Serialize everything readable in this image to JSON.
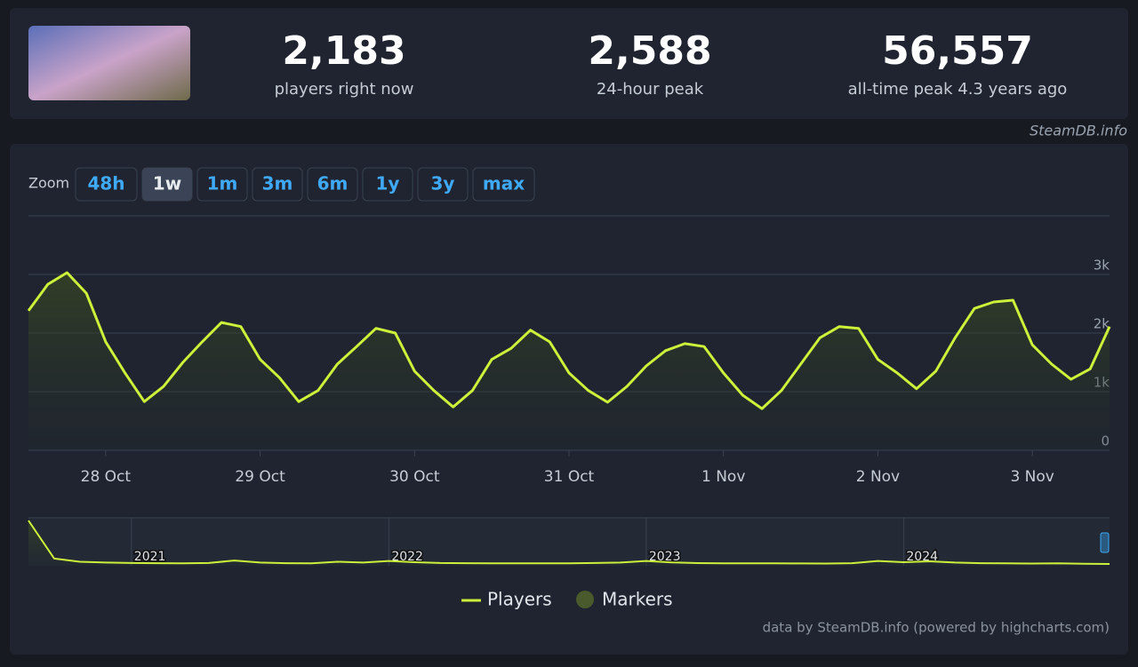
{
  "header": {
    "stats": [
      {
        "value": "2,183",
        "label": "players right now"
      },
      {
        "value": "2,588",
        "label": "24-hour peak"
      },
      {
        "value": "56,557",
        "label": "all-time peak 4.3 years ago"
      }
    ],
    "brand": "SteamDB.info"
  },
  "zoom": {
    "label": "Zoom",
    "buttons": [
      "48h",
      "1w",
      "1m",
      "3m",
      "6m",
      "1y",
      "3y",
      "max"
    ],
    "active": "1w"
  },
  "markers_legend": {
    "name": "Markers",
    "color": "#4b5a2c"
  },
  "credit": "data by SteamDB.info (powered by highcharts.com)",
  "chart_data": [
    {
      "type": "line",
      "ylim": [
        0,
        4000
      ],
      "yticks": [
        0,
        {
          "value": 1000,
          "label": "1k"
        },
        {
          "value": 2000,
          "label": "2k"
        },
        {
          "value": 3000,
          "label": "3k"
        }
      ],
      "grid": true,
      "categories": [
        null,
        null,
        null,
        null,
        "28 Oct",
        null,
        null,
        null,
        null,
        null,
        null,
        null,
        "29 Oct",
        null,
        null,
        null,
        null,
        null,
        null,
        null,
        "30 Oct",
        null,
        null,
        null,
        null,
        null,
        null,
        null,
        "31 Oct",
        null,
        null,
        null,
        null,
        null,
        null,
        null,
        "1 Nov",
        null,
        null,
        null,
        null,
        null,
        null,
        null,
        "2 Nov",
        null,
        null,
        null,
        null,
        null,
        null,
        null,
        "3 Nov",
        null,
        null,
        null,
        null
      ],
      "series": [
        {
          "name": "Players",
          "color": "#cdf03a",
          "values": [
            2380,
            2830,
            3030,
            2680,
            1850,
            1320,
            830,
            1090,
            1500,
            1850,
            2180,
            2110,
            1550,
            1240,
            830,
            1020,
            1470,
            1770,
            2080,
            2000,
            1350,
            1020,
            740,
            1020,
            1550,
            1740,
            2050,
            1850,
            1320,
            1020,
            820,
            1090,
            1440,
            1700,
            1820,
            1770,
            1320,
            940,
            710,
            1020,
            1470,
            1920,
            2110,
            2080,
            1550,
            1320,
            1050,
            1350,
            1920,
            2420,
            2530,
            2560,
            1800,
            1470,
            1210,
            1390,
            2110
          ]
        }
      ]
    },
    {
      "type": "line",
      "ylim": [
        0,
        60000
      ],
      "categories": [
        null,
        null,
        null,
        null,
        "2021",
        null,
        null,
        null,
        null,
        null,
        null,
        null,
        null,
        null,
        "2022",
        null,
        null,
        null,
        null,
        null,
        null,
        null,
        null,
        null,
        "2023",
        null,
        null,
        null,
        null,
        null,
        null,
        null,
        null,
        null,
        "2024",
        null,
        null,
        null,
        null,
        null,
        null,
        null,
        null
      ],
      "series": [
        {
          "name": "Players",
          "color": "#cdf03a",
          "values": [
            56557,
            9000,
            5000,
            4000,
            3500,
            3200,
            3000,
            3500,
            6500,
            4000,
            3200,
            3000,
            5000,
            4000,
            6000,
            4500,
            3500,
            3200,
            3000,
            3000,
            3100,
            3000,
            3500,
            4000,
            6000,
            4200,
            3300,
            3000,
            3000,
            3000,
            2900,
            2800,
            3200,
            6000,
            4500,
            5500,
            4000,
            3200,
            3000,
            2800,
            3000,
            2500,
            2183
          ]
        }
      ]
    }
  ]
}
